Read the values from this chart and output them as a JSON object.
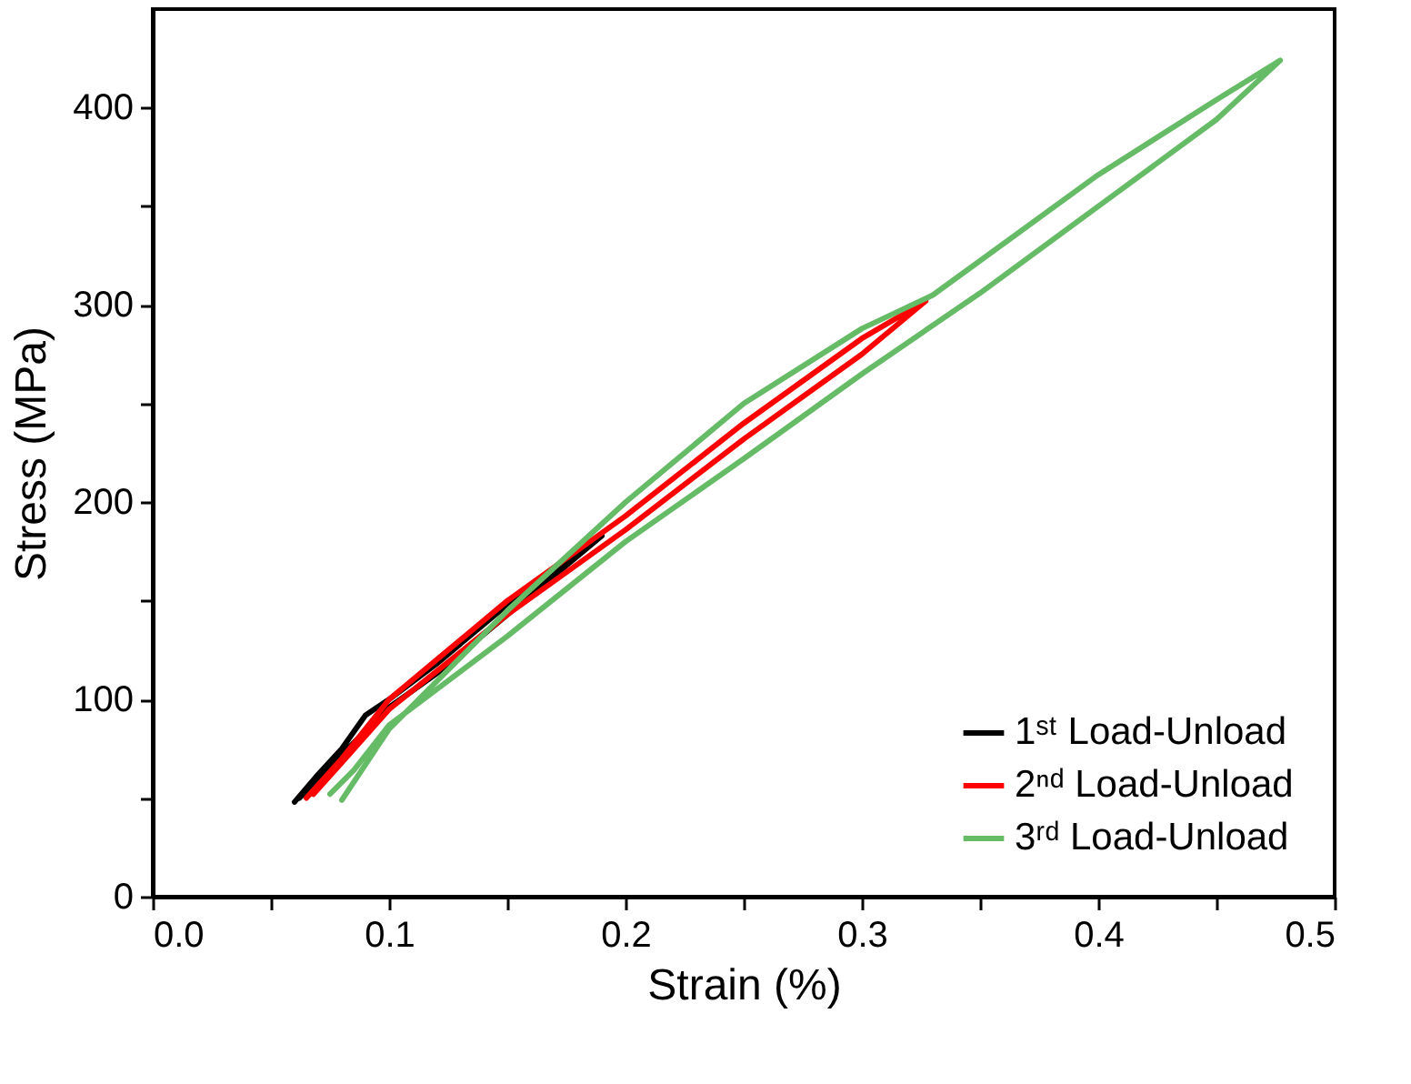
{
  "chart_data": {
    "type": "line",
    "xlabel": "Strain (%)",
    "ylabel": "Stress (MPa)",
    "xlim": [
      0,
      0.5
    ],
    "ylim": [
      0,
      450
    ],
    "xticks": [
      {
        "value": 0,
        "label": "0.0"
      },
      {
        "value": 0.05,
        "label": null
      },
      0.1,
      {
        "value": 0.15,
        "label": null
      },
      0.2,
      {
        "value": 0.25,
        "label": null
      },
      0.3,
      {
        "value": 0.35,
        "label": null
      },
      0.4,
      {
        "value": 0.45,
        "label": null
      },
      0.5
    ],
    "yticks": [
      0,
      {
        "value": 50,
        "label": null
      },
      100,
      {
        "value": 150,
        "label": null
      },
      200,
      {
        "value": 250,
        "label": null
      },
      300,
      {
        "value": 350,
        "label": null
      },
      400
    ],
    "grid": false,
    "legend": "bottom right",
    "marker": "none",
    "line_style": "solid",
    "series": [
      {
        "name": "1ˢᵗ Load-Unload",
        "color": "#000000",
        "x": [
          0.06,
          0.07,
          0.08,
          0.09,
          0.1,
          0.12,
          0.15,
          0.17,
          0.19,
          0.15,
          0.12,
          0.1,
          0.08,
          0.062
        ],
        "values": [
          48,
          62,
          75,
          92,
          100,
          118,
          148,
          165,
          183,
          143,
          113,
          96,
          72,
          50
        ]
      },
      {
        "name": "2ⁿᵈ Load-Unload",
        "color": "#ff0000",
        "x": [
          0.065,
          0.08,
          0.1,
          0.15,
          0.2,
          0.25,
          0.3,
          0.327,
          0.3,
          0.25,
          0.2,
          0.15,
          0.1,
          0.08,
          0.068
        ],
        "values": [
          50,
          70,
          100,
          150,
          193,
          240,
          283,
          302,
          275,
          232,
          186,
          143,
          95,
          68,
          52
        ]
      },
      {
        "name": "3ʳᵈ Load-Unload",
        "color": "#66bb66",
        "x": [
          0.08,
          0.1,
          0.15,
          0.2,
          0.25,
          0.3,
          0.33,
          0.4,
          0.45,
          0.477,
          0.45,
          0.4,
          0.35,
          0.3,
          0.25,
          0.2,
          0.15,
          0.1,
          0.085,
          0.075
        ],
        "values": [
          49,
          85,
          145,
          200,
          250,
          288,
          305,
          366,
          404,
          424,
          394,
          350,
          306,
          265,
          222,
          180,
          132,
          87,
          64,
          52
        ]
      }
    ]
  }
}
